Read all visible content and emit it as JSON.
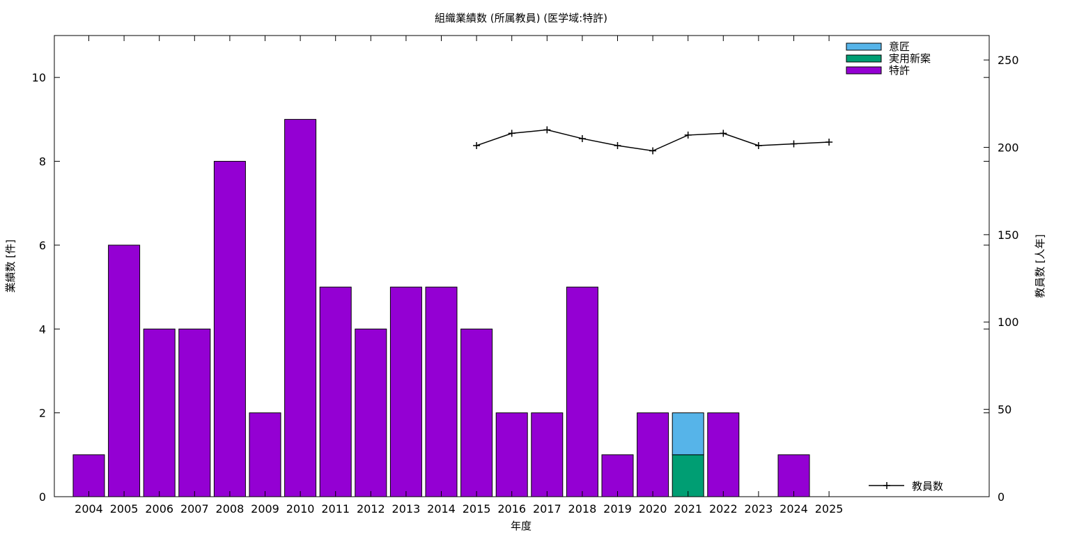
{
  "chart_data": {
    "type": "bar",
    "stacked": true,
    "title": "組織業績数 (所属教員) (医学域:特許)",
    "xlabel": "年度",
    "ylabel": "業績数 [件]",
    "y2label": "教員数 [人年]",
    "ylim": [
      0,
      11
    ],
    "y2lim": [
      0,
      264
    ],
    "yticks": [
      0,
      2,
      4,
      6,
      8,
      10
    ],
    "y2ticks": [
      0,
      50,
      100,
      150,
      200,
      250
    ],
    "grid": false,
    "legend_position": "top-right",
    "categories": [
      "2004",
      "2005",
      "2006",
      "2007",
      "2008",
      "2009",
      "2010",
      "2011",
      "2012",
      "2013",
      "2014",
      "2015",
      "2016",
      "2017",
      "2018",
      "2019",
      "2020",
      "2021",
      "2022",
      "2023",
      "2024",
      "2025"
    ],
    "series": [
      {
        "name": "特許",
        "color": "#9400d3",
        "values": [
          1,
          6,
          4,
          4,
          8,
          2,
          9,
          5,
          4,
          5,
          5,
          4,
          2,
          2,
          5,
          1,
          2,
          0,
          2,
          0,
          1,
          0
        ]
      },
      {
        "name": "実用新案",
        "color": "#009e73",
        "values": [
          0,
          0,
          0,
          0,
          0,
          0,
          0,
          0,
          0,
          0,
          0,
          0,
          0,
          0,
          0,
          0,
          0,
          1,
          0,
          0,
          0,
          0
        ]
      },
      {
        "name": "意匠",
        "color": "#56b4e9",
        "values": [
          0,
          0,
          0,
          0,
          0,
          0,
          0,
          0,
          0,
          0,
          0,
          0,
          0,
          0,
          0,
          0,
          0,
          1,
          0,
          0,
          0,
          0
        ]
      }
    ],
    "line_series": {
      "name": "教員数",
      "color": "#000000",
      "axis": "y2",
      "x": [
        "2015",
        "2016",
        "2017",
        "2018",
        "2019",
        "2020",
        "2021",
        "2022",
        "2023",
        "2024",
        "2025"
      ],
      "values": [
        201,
        208,
        210,
        205,
        201,
        198,
        207,
        208,
        201,
        202,
        203
      ]
    }
  }
}
